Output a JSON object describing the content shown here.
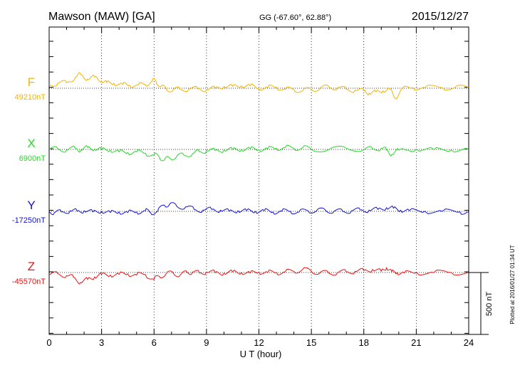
{
  "header": {
    "station": "Mawson (MAW)  [GA]",
    "coords": "GG (-67.60°,  62.88°)",
    "date": "2015/12/27"
  },
  "side_note": "Plotted at 2016/01/27 01:34 UT",
  "scale_label": "500 nT",
  "colors": {
    "F": "#f5b400",
    "X": "#22dd22",
    "Y": "#1111dd",
    "Z": "#ee1111"
  },
  "chart_data": {
    "type": "line",
    "title": "Mawson (MAW)  [GA]",
    "xlabel": "U T (hour)",
    "xlim": [
      0,
      24
    ],
    "xticks": [
      "0",
      "3",
      "6",
      "9",
      "12",
      "15",
      "18",
      "21",
      "24"
    ],
    "grid": true,
    "scale_bar_nT": 500,
    "series": [
      {
        "name": "F",
        "baseline_label": "49210nT",
        "color": "#f5b400",
        "x": [
          0,
          0.5,
          1,
          1.5,
          1.8,
          2.2,
          2.6,
          3,
          3.3,
          3.7,
          4.2,
          4.6,
          5.1,
          5.5,
          5.9,
          6.1,
          6.4,
          6.7,
          7.1,
          7.5,
          8,
          8.5,
          9,
          9.5,
          10,
          10.5,
          11,
          11.5,
          12,
          12.5,
          13,
          13.5,
          14,
          14.5,
          15,
          15.5,
          16,
          16.5,
          17,
          17.5,
          18,
          18.3,
          18.7,
          19.1,
          19.5,
          19.8,
          20.2,
          20.8,
          21.5,
          22.5,
          23.2,
          24
        ],
        "y": [
          30,
          40,
          45,
          90,
          110,
          75,
          90,
          60,
          45,
          40,
          30,
          25,
          25,
          30,
          60,
          60,
          15,
          -10,
          -10,
          -10,
          -5,
          -5,
          -10,
          0,
          15,
          15,
          20,
          20,
          0,
          5,
          10,
          -10,
          -10,
          -20,
          -10,
          0,
          10,
          5,
          -10,
          -15,
          -20,
          -40,
          -30,
          -20,
          -10,
          -80,
          -5,
          5,
          5,
          5,
          5,
          5
        ]
      },
      {
        "name": "X",
        "baseline_label": "6900nT",
        "color": "#22dd22",
        "x": [
          0,
          0.5,
          1,
          1.5,
          1.8,
          2.2,
          2.6,
          3,
          3.5,
          4,
          4.5,
          5,
          5.5,
          6,
          6.3,
          6.6,
          6.9,
          7.3,
          7.7,
          8.2,
          8.6,
          9,
          9.5,
          10,
          10.5,
          11,
          11.5,
          12,
          12.5,
          13,
          13.5,
          14,
          14.5,
          15,
          16,
          17,
          18,
          18.5,
          19,
          19.3,
          19.6,
          20,
          21,
          22,
          23,
          24
        ],
        "y": [
          0,
          5,
          -5,
          10,
          -5,
          15,
          5,
          0,
          -5,
          -20,
          -25,
          -20,
          -30,
          -45,
          -60,
          -85,
          -70,
          -55,
          -45,
          -35,
          -20,
          -10,
          -10,
          -5,
          0,
          0,
          5,
          0,
          5,
          10,
          15,
          10,
          15,
          0,
          0,
          10,
          0,
          5,
          10,
          -5,
          -40,
          -5,
          0,
          0,
          -5,
          0
        ]
      },
      {
        "name": "Y",
        "baseline_label": "-17250nT",
        "color": "#1111dd",
        "x": [
          0,
          0.3,
          0.7,
          1.2,
          1.6,
          2,
          2.5,
          3,
          3.5,
          4,
          4.5,
          5,
          5.5,
          5.8,
          6.2,
          6.6,
          6.9,
          7.3,
          7.8,
          8.3,
          8.8,
          9.3,
          9.8,
          10.3,
          10.8,
          11.3,
          11.8,
          12.3,
          12.8,
          13.3,
          13.8,
          14.3,
          14.8,
          15.3,
          15.8,
          16.3,
          16.8,
          17.3,
          17.8,
          18.3,
          18.8,
          19.3,
          19.7,
          20.1,
          20.6,
          21.5,
          22.5,
          23.5,
          24
        ],
        "y": [
          0,
          -10,
          -5,
          5,
          0,
          5,
          -5,
          0,
          -10,
          -5,
          -10,
          -5,
          5,
          -10,
          0,
          50,
          60,
          40,
          35,
          15,
          10,
          15,
          10,
          0,
          5,
          5,
          0,
          5,
          -5,
          0,
          0,
          -5,
          5,
          5,
          10,
          0,
          0,
          5,
          10,
          10,
          15,
          30,
          25,
          10,
          5,
          0,
          0,
          -5,
          -5
        ]
      },
      {
        "name": "Z",
        "baseline_label": "-45570nT",
        "color": "#ee1111",
        "x": [
          0,
          0.5,
          1,
          1.4,
          1.8,
          2.2,
          2.6,
          3,
          3.5,
          4,
          4.5,
          5,
          5.5,
          6,
          6.3,
          6.7,
          7.1,
          7.5,
          7.9,
          8.2,
          8.6,
          9,
          9.5,
          10,
          10.5,
          11,
          11.5,
          12,
          12.5,
          13,
          13.5,
          14,
          14.5,
          15,
          15.5,
          16,
          16.5,
          17,
          17.5,
          18,
          18.5,
          19,
          19.3,
          19.6,
          19.9,
          20.3,
          21,
          22,
          23,
          24
        ],
        "y": [
          -20,
          -10,
          -25,
          -40,
          -80,
          -55,
          -35,
          -15,
          -20,
          -15,
          -10,
          -20,
          -15,
          -55,
          -30,
          -10,
          -5,
          -20,
          0,
          5,
          -5,
          5,
          0,
          -5,
          5,
          0,
          -5,
          5,
          0,
          0,
          5,
          10,
          25,
          10,
          0,
          -5,
          0,
          5,
          10,
          15,
          25,
          10,
          40,
          5,
          0,
          -5,
          0,
          0,
          0,
          0
        ]
      }
    ]
  }
}
